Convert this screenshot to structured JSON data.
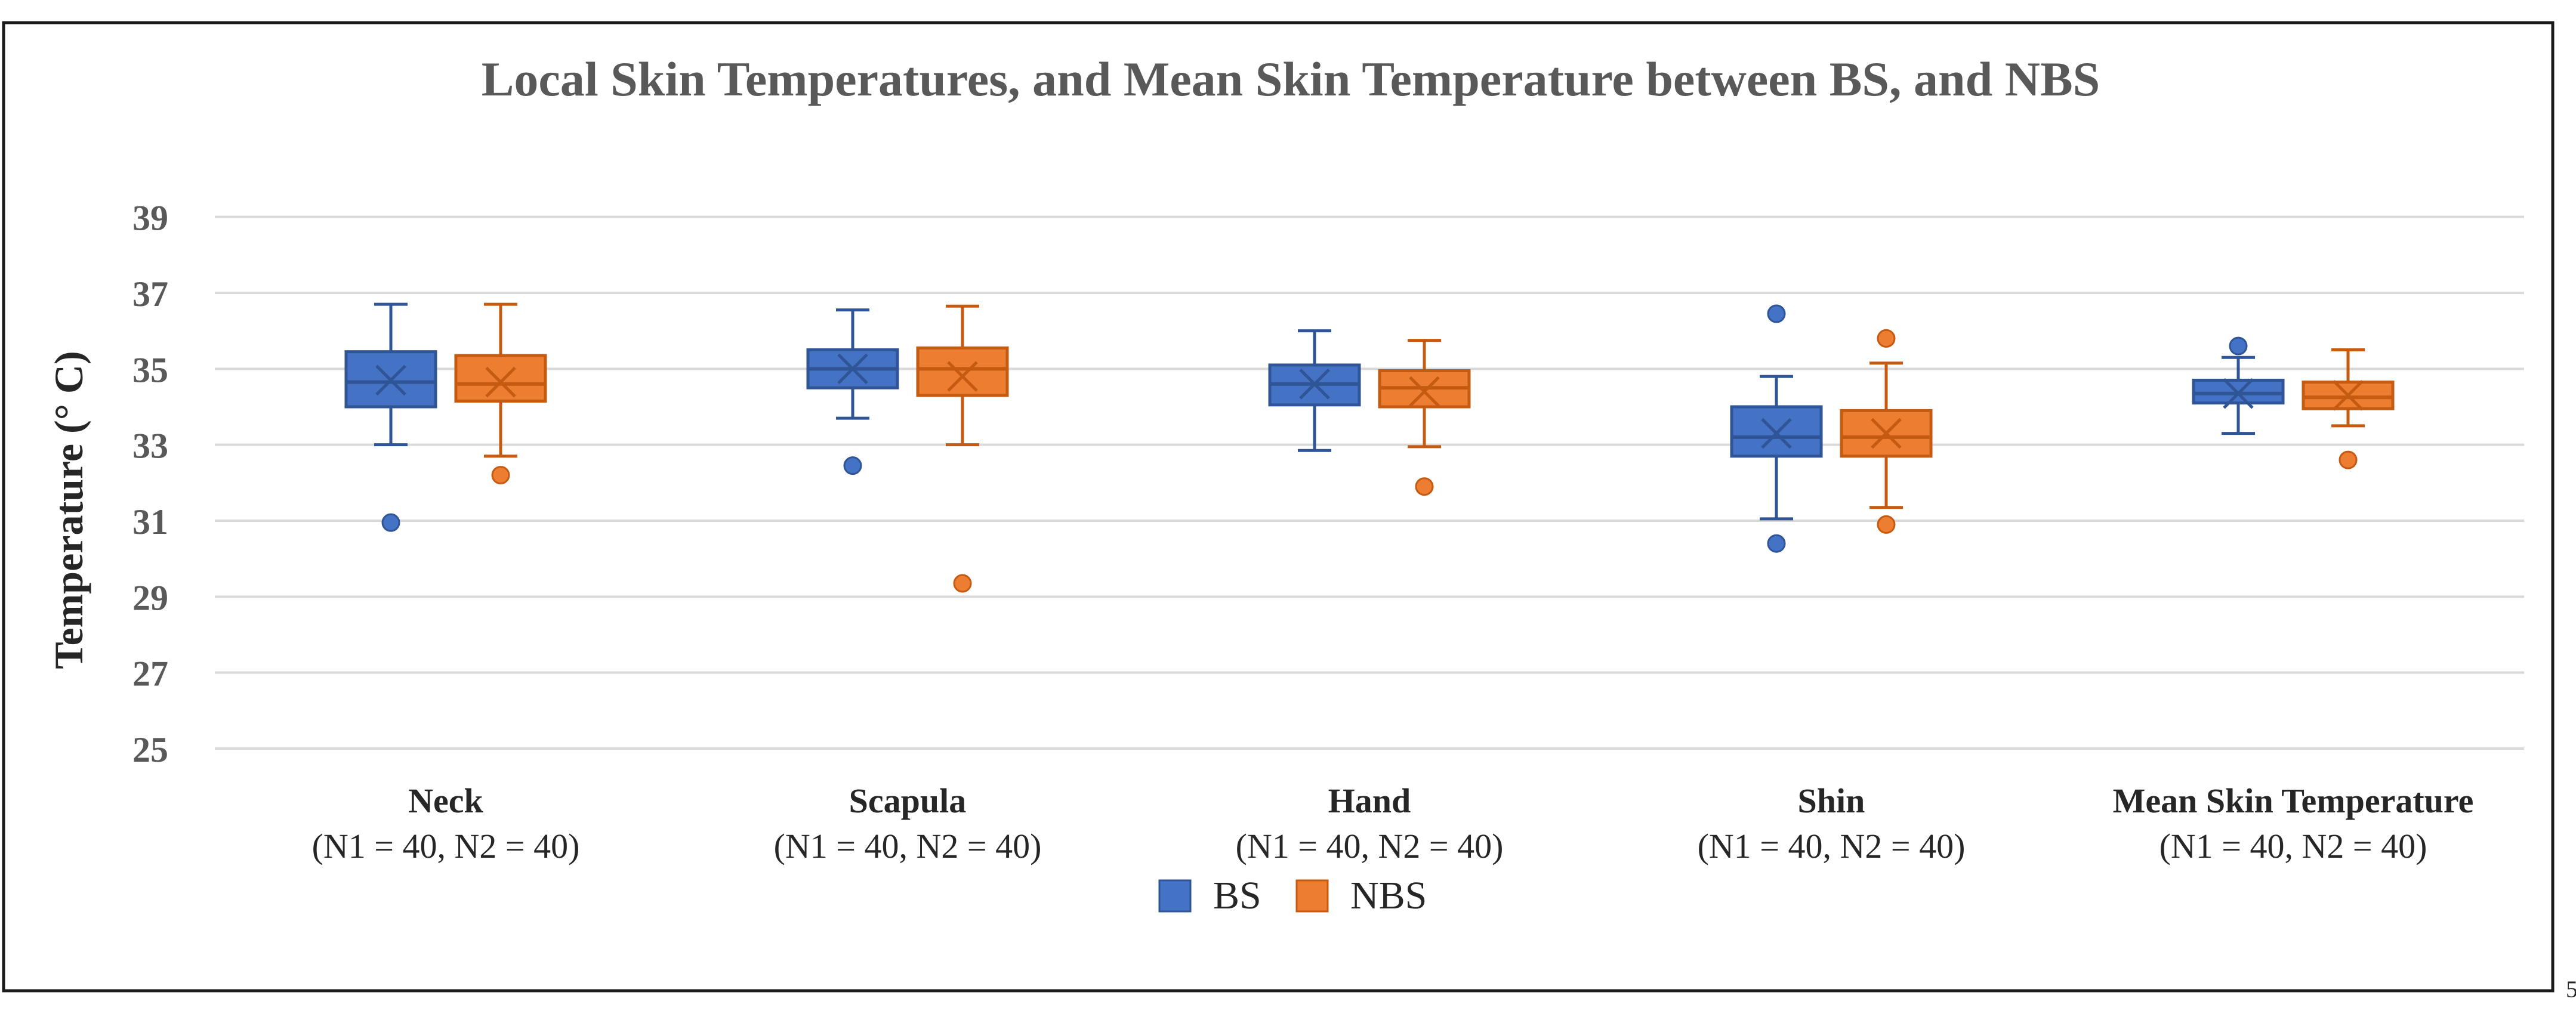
{
  "chart_data": {
    "type": "box",
    "title": "Local Skin Temperatures, and Mean Skin Temperature between BS, and NBS",
    "xlabel": "",
    "ylabel": "Temperature (° C)",
    "ylim": [
      25,
      40
    ],
    "yticks": [
      25,
      27,
      29,
      31,
      33,
      35,
      37,
      39
    ],
    "grid": true,
    "legend_position": "bottom",
    "categories": [
      {
        "name": "Neck",
        "subtitle": "(N1 = 40, N2 = 40)"
      },
      {
        "name": "Scapula",
        "subtitle": "(N1 = 40, N2 = 40)"
      },
      {
        "name": "Hand",
        "subtitle": "(N1 = 40, N2 = 40)"
      },
      {
        "name": "Shin",
        "subtitle": "(N1 = 40, N2 = 40)"
      },
      {
        "name": "Mean Skin Temperature",
        "subtitle": "(N1 = 40, N2 = 40)"
      }
    ],
    "series": [
      {
        "name": "BS",
        "color": "#4472C4",
        "edge": "#2F5597",
        "boxes": [
          {
            "min": 33.0,
            "q1": 34.0,
            "median": 34.65,
            "q3": 35.45,
            "max": 36.7,
            "mean": 34.7,
            "outliers": [
              30.95
            ]
          },
          {
            "min": 33.7,
            "q1": 34.5,
            "median": 35.0,
            "q3": 35.5,
            "max": 36.55,
            "mean": 35.0,
            "outliers": [
              32.45
            ]
          },
          {
            "min": 32.85,
            "q1": 34.05,
            "median": 34.6,
            "q3": 35.1,
            "max": 36.0,
            "mean": 34.6,
            "outliers": []
          },
          {
            "min": 31.05,
            "q1": 32.7,
            "median": 33.2,
            "q3": 34.0,
            "max": 34.8,
            "mean": 33.3,
            "outliers": [
              36.45,
              30.4
            ]
          },
          {
            "min": 33.3,
            "q1": 34.1,
            "median": 34.35,
            "q3": 34.7,
            "max": 35.3,
            "mean": 34.35,
            "outliers": [
              35.6
            ]
          }
        ]
      },
      {
        "name": "NBS",
        "color": "#ED7D31",
        "edge": "#C55A11",
        "boxes": [
          {
            "min": 32.7,
            "q1": 34.15,
            "median": 34.6,
            "q3": 35.35,
            "max": 36.7,
            "mean": 34.65,
            "outliers": [
              32.2
            ]
          },
          {
            "min": 33.0,
            "q1": 34.3,
            "median": 35.0,
            "q3": 35.55,
            "max": 36.65,
            "mean": 34.8,
            "outliers": [
              29.35
            ]
          },
          {
            "min": 32.95,
            "q1": 34.0,
            "median": 34.5,
            "q3": 34.95,
            "max": 35.75,
            "mean": 34.4,
            "outliers": [
              31.9
            ]
          },
          {
            "min": 31.35,
            "q1": 32.7,
            "median": 33.2,
            "q3": 33.9,
            "max": 35.15,
            "mean": 33.3,
            "outliers": [
              35.8,
              30.9
            ]
          },
          {
            "min": 33.5,
            "q1": 33.95,
            "median": 34.25,
            "q3": 34.65,
            "max": 35.5,
            "mean": 34.3,
            "outliers": [
              32.6
            ]
          }
        ]
      }
    ]
  },
  "footer_mark": "5"
}
